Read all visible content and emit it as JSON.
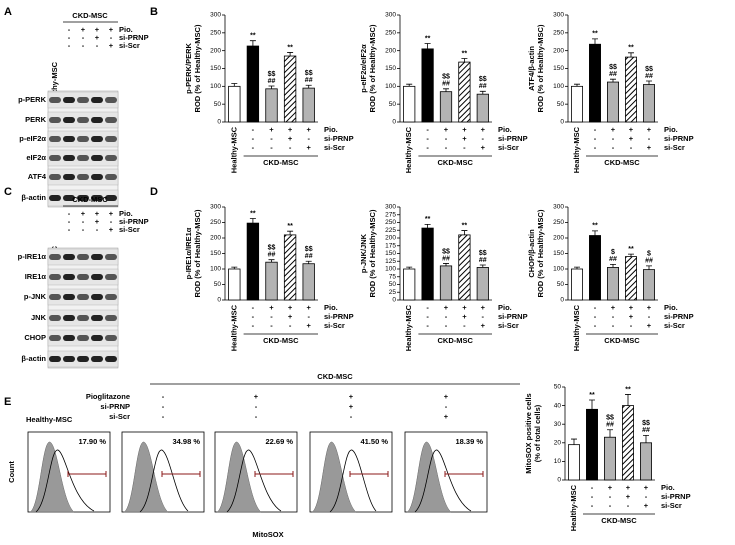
{
  "panel_labels": [
    "A",
    "B",
    "C",
    "D",
    "E"
  ],
  "blots": [
    {
      "group_label": "CKD-MSC",
      "lane_label": "Healthy-MSC",
      "conditions": {
        "rows": [
          "Pio.",
          "si-PRNP",
          "si-Scr"
        ],
        "marks": [
          [
            "-",
            "+",
            "+",
            "+"
          ],
          [
            "-",
            "-",
            "+",
            "-"
          ],
          [
            "-",
            "-",
            "-",
            "+"
          ]
        ]
      },
      "rows": [
        "p-PERK",
        "PERK",
        "p-eIF2α",
        "eIF2α",
        "ATF4",
        "β-actin"
      ]
    },
    {
      "group_label": "CKD-MSC",
      "lane_label": "Healthy-MSC",
      "conditions": {
        "rows": [
          "Pio.",
          "si-PRNP",
          "si-Scr"
        ],
        "marks": [
          [
            "-",
            "+",
            "+",
            "+"
          ],
          [
            "-",
            "-",
            "+",
            "-"
          ],
          [
            "-",
            "-",
            "-",
            "+"
          ]
        ]
      },
      "rows": [
        "p-IRE1α",
        "IRE1α",
        "p-JNK",
        "JNK",
        "CHOP",
        "β-actin"
      ]
    }
  ],
  "chart_data": [
    {
      "type": "bar",
      "ylabel": [
        "p-PERK/PERK",
        "ROD (% of Healthy-MSC)"
      ],
      "categories": [
        "Healthy-MSC",
        null,
        null,
        null,
        null
      ],
      "values": [
        100,
        213,
        93,
        185,
        95
      ],
      "errors": [
        8,
        15,
        8,
        10,
        8
      ],
      "colors": [
        "#ffffff",
        "#000000",
        "#b3b3b3",
        "#ffffff",
        "#b3b3b3"
      ],
      "hatched": [
        false,
        false,
        false,
        true,
        false
      ],
      "annotations": [
        [],
        [
          "**"
        ],
        [
          "$$",
          "##"
        ],
        [
          "**"
        ],
        [
          "$$",
          "##"
        ]
      ],
      "conditions": {
        "rows": [
          "Pio.",
          "si-PRNP",
          "si-Scr"
        ],
        "marks": [
          [
            null,
            "-",
            "+",
            "+",
            "+"
          ],
          [
            null,
            "-",
            "-",
            "+",
            "-"
          ],
          [
            null,
            "-",
            "-",
            "-",
            "+"
          ]
        ]
      },
      "group_label": "CKD-MSC",
      "ylim": [
        0,
        300
      ],
      "yticks": [
        0,
        50,
        100,
        150,
        200,
        250,
        300
      ]
    },
    {
      "type": "bar",
      "ylabel": [
        "p-eIF2α/eIF2α",
        "ROD (% of Healthy-MSC)"
      ],
      "categories": [
        "Healthy-MSC",
        null,
        null,
        null,
        null
      ],
      "values": [
        100,
        205,
        85,
        168,
        78
      ],
      "errors": [
        6,
        15,
        8,
        10,
        8
      ],
      "colors": [
        "#ffffff",
        "#000000",
        "#b3b3b3",
        "#ffffff",
        "#b3b3b3"
      ],
      "hatched": [
        false,
        false,
        false,
        true,
        false
      ],
      "annotations": [
        [],
        [
          "**"
        ],
        [
          "$$",
          "##"
        ],
        [
          "**"
        ],
        [
          "$$",
          "##"
        ]
      ],
      "conditions": {
        "rows": [
          "Pio.",
          "si-PRNP",
          "si-Scr"
        ],
        "marks": [
          [
            null,
            "-",
            "+",
            "+",
            "+"
          ],
          [
            null,
            "-",
            "-",
            "+",
            "-"
          ],
          [
            null,
            "-",
            "-",
            "-",
            "+"
          ]
        ]
      },
      "group_label": "CKD-MSC",
      "ylim": [
        0,
        300
      ],
      "yticks": [
        0,
        50,
        100,
        150,
        200,
        250,
        300
      ]
    },
    {
      "type": "bar",
      "ylabel": [
        "ATF4/β-actin",
        "ROD (% of Healthy-MSC)"
      ],
      "categories": [
        "Healthy-MSC",
        null,
        null,
        null,
        null
      ],
      "values": [
        100,
        218,
        112,
        182,
        105
      ],
      "errors": [
        6,
        15,
        8,
        12,
        10
      ],
      "colors": [
        "#ffffff",
        "#000000",
        "#b3b3b3",
        "#ffffff",
        "#b3b3b3"
      ],
      "hatched": [
        false,
        false,
        false,
        true,
        false
      ],
      "annotations": [
        [],
        [
          "**"
        ],
        [
          "$$",
          "##"
        ],
        [
          "**"
        ],
        [
          "$$",
          "##"
        ]
      ],
      "conditions": {
        "rows": [
          "Pio.",
          "si-PRNP",
          "si-Scr"
        ],
        "marks": [
          [
            null,
            "-",
            "+",
            "+",
            "+"
          ],
          [
            null,
            "-",
            "-",
            "+",
            "-"
          ],
          [
            null,
            "-",
            "-",
            "-",
            "+"
          ]
        ]
      },
      "group_label": "CKD-MSC",
      "ylim": [
        0,
        300
      ],
      "yticks": [
        0,
        50,
        100,
        150,
        200,
        250,
        300
      ]
    },
    {
      "type": "bar",
      "ylabel": [
        "p-IRE1α/IRE1α",
        "ROD (% of Healthy-MSC)"
      ],
      "categories": [
        "Healthy-MSC",
        null,
        null,
        null,
        null
      ],
      "values": [
        100,
        248,
        122,
        210,
        117
      ],
      "errors": [
        6,
        15,
        8,
        12,
        8
      ],
      "colors": [
        "#ffffff",
        "#000000",
        "#b3b3b3",
        "#ffffff",
        "#b3b3b3"
      ],
      "hatched": [
        false,
        false,
        false,
        true,
        false
      ],
      "annotations": [
        [],
        [
          "**"
        ],
        [
          "$$",
          "##"
        ],
        [
          "**"
        ],
        [
          "$$",
          "##"
        ]
      ],
      "conditions": {
        "rows": [
          "Pio.",
          "si-PRNP",
          "si-Scr"
        ],
        "marks": [
          [
            null,
            "-",
            "+",
            "+",
            "+"
          ],
          [
            null,
            "-",
            "-",
            "+",
            "-"
          ],
          [
            null,
            "-",
            "-",
            "-",
            "+"
          ]
        ]
      },
      "group_label": "CKD-MSC",
      "ylim": [
        0,
        300
      ],
      "yticks": [
        0,
        50,
        100,
        150,
        200,
        250,
        300
      ]
    },
    {
      "type": "bar",
      "ylabel": [
        "p-JNK/JNK",
        "ROD (% of Healthy-MSC)"
      ],
      "categories": [
        "Healthy-MSC",
        null,
        null,
        null,
        null
      ],
      "values": [
        100,
        232,
        110,
        210,
        105
      ],
      "errors": [
        6,
        12,
        8,
        14,
        8
      ],
      "colors": [
        "#ffffff",
        "#000000",
        "#b3b3b3",
        "#ffffff",
        "#b3b3b3"
      ],
      "hatched": [
        false,
        false,
        false,
        true,
        false
      ],
      "annotations": [
        [],
        [
          "**"
        ],
        [
          "$$",
          "##"
        ],
        [
          "**"
        ],
        [
          "$$",
          "##"
        ]
      ],
      "conditions": {
        "rows": [
          "Pio.",
          "si-PRNP",
          "si-Scr"
        ],
        "marks": [
          [
            null,
            "-",
            "+",
            "+",
            "+"
          ],
          [
            null,
            "-",
            "-",
            "+",
            "-"
          ],
          [
            null,
            "-",
            "-",
            "-",
            "+"
          ]
        ]
      },
      "group_label": "CKD-MSC",
      "ylim": [
        0,
        300
      ],
      "yticks": [
        0,
        25,
        50,
        75,
        100,
        125,
        150,
        175,
        200,
        225,
        250,
        275,
        300
      ]
    },
    {
      "type": "bar",
      "ylabel": [
        "CHOP/β-actin",
        "ROD (% of Healthy-MSC)"
      ],
      "categories": [
        "Healthy-MSC",
        null,
        null,
        null,
        null
      ],
      "values": [
        100,
        208,
        105,
        140,
        98
      ],
      "errors": [
        6,
        15,
        10,
        8,
        12
      ],
      "colors": [
        "#ffffff",
        "#000000",
        "#b3b3b3",
        "#ffffff",
        "#b3b3b3"
      ],
      "hatched": [
        false,
        false,
        false,
        true,
        false
      ],
      "annotations": [
        [],
        [
          "**"
        ],
        [
          "$",
          "##"
        ],
        [
          "**"
        ],
        [
          "$",
          "##"
        ]
      ],
      "conditions": {
        "rows": [
          "Pio.",
          "si-PRNP",
          "si-Scr"
        ],
        "marks": [
          [
            null,
            "-",
            "+",
            "+",
            "+"
          ],
          [
            null,
            "-",
            "-",
            "+",
            "-"
          ],
          [
            null,
            "-",
            "-",
            "-",
            "+"
          ]
        ]
      },
      "group_label": "CKD-MSC",
      "ylim": [
        0,
        300
      ],
      "yticks": [
        0,
        50,
        100,
        150,
        200,
        250,
        300
      ]
    },
    {
      "type": "bar",
      "ylabel": [
        "MitoSOX positive cells",
        "(% of total cells)"
      ],
      "categories": [
        "Healthy-MSC",
        null,
        null,
        null,
        null
      ],
      "values": [
        19,
        38,
        23,
        40,
        20
      ],
      "errors": [
        3,
        5,
        4,
        6,
        4
      ],
      "colors": [
        "#ffffff",
        "#000000",
        "#b3b3b3",
        "#ffffff",
        "#b3b3b3"
      ],
      "hatched": [
        false,
        false,
        false,
        true,
        false
      ],
      "annotations": [
        [],
        [
          "**"
        ],
        [
          "$$",
          "##"
        ],
        [
          "**"
        ],
        [
          "$$",
          "##"
        ]
      ],
      "conditions": {
        "rows": [
          "Pio.",
          "si-PRNP",
          "si-Scr"
        ],
        "marks": [
          [
            null,
            "-",
            "+",
            "+",
            "+"
          ],
          [
            null,
            "-",
            "-",
            "+",
            "-"
          ],
          [
            null,
            "-",
            "-",
            "-",
            "+"
          ]
        ]
      },
      "group_label": "CKD-MSC",
      "ylim": [
        0,
        50
      ],
      "yticks": [
        0,
        10,
        20,
        30,
        40,
        50
      ]
    }
  ],
  "flow": {
    "group_label": "CKD-MSC",
    "lane_label": "Healthy-MSC",
    "conditions": {
      "rows": [
        "Pioglitazone",
        "si-PRNP",
        "si-Scr"
      ],
      "marks": [
        [
          "-",
          "+",
          "+",
          "+"
        ],
        [
          "-",
          "-",
          "+",
          "-"
        ],
        [
          "-",
          "-",
          "-",
          "+"
        ]
      ]
    },
    "percents": [
      "17.90 %",
      "34.98 %",
      "22.69 %",
      "41.50 %",
      "18.39 %"
    ],
    "xlabel": "MitoSOX",
    "ylabel": "Count"
  }
}
